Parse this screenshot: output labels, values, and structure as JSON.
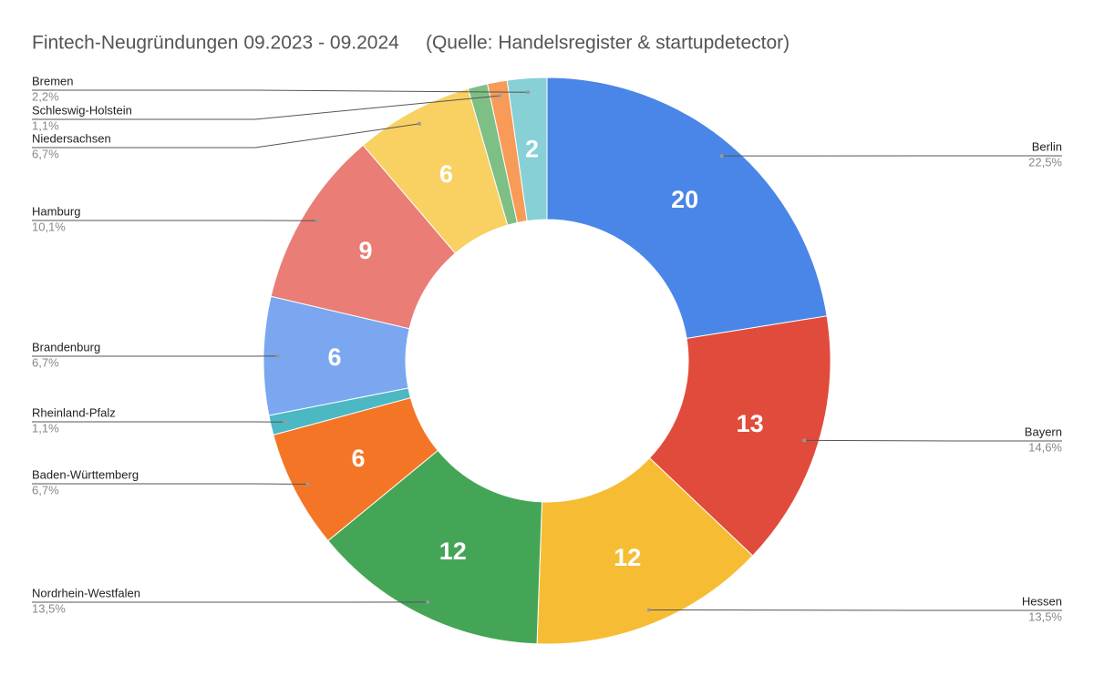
{
  "chart_data": {
    "type": "donut",
    "title": "Fintech-Neugründungen 09.2023 - 09.2024     (Quelle: Handelsregister & startupdetector)",
    "categories": [
      "Berlin",
      "Bayern",
      "Hessen",
      "Nordrhein-Westfalen",
      "Baden-Württemberg",
      "Rheinland-Pfalz",
      "Brandenburg",
      "Hamburg",
      "Niedersachsen",
      null,
      "Schleswig-Holstein",
      "Bremen"
    ],
    "values": [
      20,
      13,
      12,
      12,
      6,
      1,
      6,
      9,
      6,
      1,
      1,
      2
    ],
    "percent_labels": [
      "22,5%",
      "14,6%",
      "13,5%",
      "13,5%",
      "6,7%",
      "1,1%",
      "6,7%",
      "10,1%",
      "6,7%",
      null,
      "1,1%",
      "2,2%"
    ],
    "colors": [
      "#4a86e8",
      "#e14b3b",
      "#f6bd34",
      "#45a557",
      "#f57526",
      "#4bb8c4",
      "#7aa7f0",
      "#ea7d75",
      "#f8d162",
      "#7ebf85",
      "#f89a58",
      "#86d0d6"
    ]
  }
}
